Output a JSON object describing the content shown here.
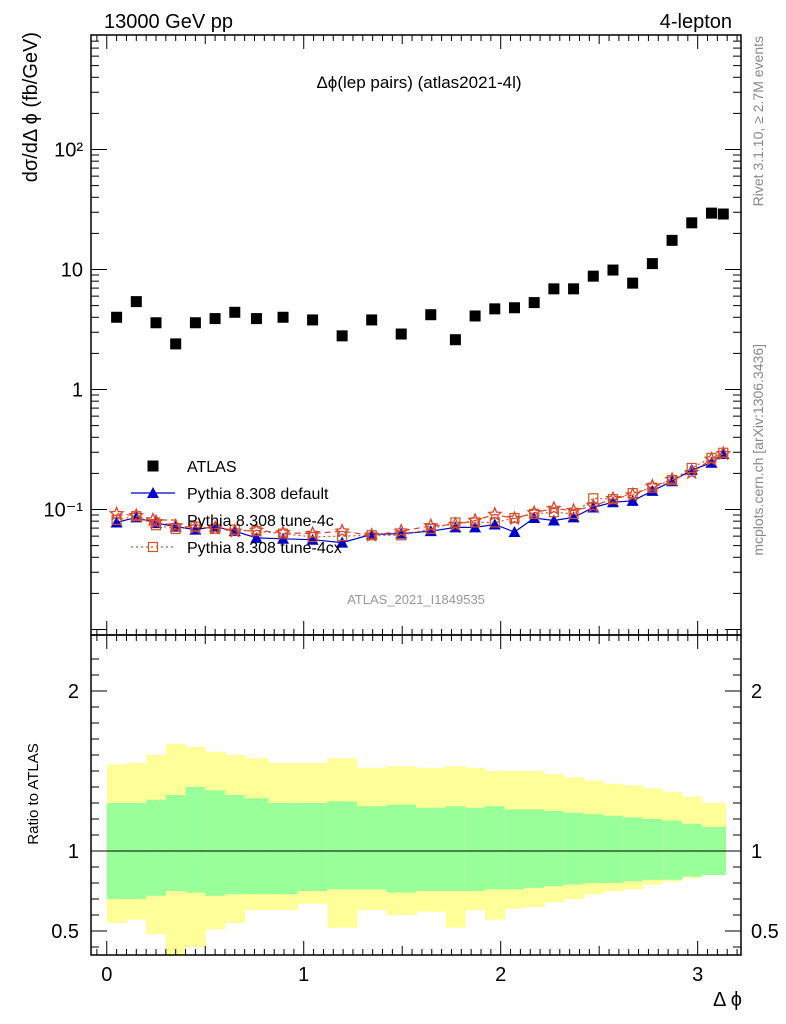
{
  "header": {
    "left": "13000 GeV pp",
    "right": "4-lepton"
  },
  "side_labels": {
    "rivet": "Rivet 3.1.10, ≥ 2.7M events",
    "mcplots": "mcplots.cern.ch [arXiv:1306.3436]"
  },
  "chart_data": {
    "type": "scatter",
    "title": "Δϕ(lep pairs) (atlas2021-4l)",
    "analysis_id": "ATLAS_2021_I1849535",
    "xlabel": "Δ ϕ",
    "ylabel": "dσ/dΔ ϕ (fb/GeV)",
    "ratio_ylabel": "Ratio to ATLAS",
    "xlim": [
      -0.08,
      3.22
    ],
    "ylim": [
      0.009,
      900
    ],
    "yscale": "log",
    "ratio_ylim": [
      0.35,
      2.35
    ],
    "x_ticks": [
      "0",
      "1",
      "2",
      "3"
    ],
    "y_ticks": [
      "10⁻¹",
      "1",
      "10",
      "10²"
    ],
    "ratio_ticks": [
      "0.5",
      "1",
      "2"
    ],
    "legend_position": "middle-left",
    "bin_edges": [
      0,
      0.1,
      0.2,
      0.3,
      0.4,
      0.5,
      0.6,
      0.7,
      0.82,
      0.97,
      1.12,
      1.27,
      1.42,
      1.57,
      1.72,
      1.82,
      1.92,
      2.02,
      2.12,
      2.22,
      2.32,
      2.42,
      2.52,
      2.62,
      2.72,
      2.82,
      2.92,
      3.02,
      3.1416
    ],
    "x": [
      0.05,
      0.15,
      0.25,
      0.35,
      0.45,
      0.55,
      0.65,
      0.76,
      0.895,
      1.045,
      1.195,
      1.345,
      1.495,
      1.645,
      1.77,
      1.87,
      1.97,
      2.07,
      2.17,
      2.27,
      2.37,
      2.47,
      2.57,
      2.67,
      2.77,
      2.87,
      2.97,
      3.07,
      3.13
    ],
    "series": [
      {
        "name": "ATLAS",
        "color": "#000000",
        "marker": "square",
        "values": [
          4.0,
          5.4,
          3.6,
          2.4,
          3.6,
          3.9,
          4.4,
          3.9,
          4.0,
          3.8,
          2.8,
          3.8,
          2.9,
          4.2,
          2.6,
          4.1,
          4.7,
          4.8,
          5.3,
          6.9,
          6.9,
          8.8,
          9.9,
          7.7,
          11.2,
          17.5,
          24.5,
          29.5,
          29.0
        ]
      },
      {
        "name": "Pythia 8.308 default",
        "color": "#0000cc",
        "marker": "triangle",
        "line": "solid",
        "values": [
          0.078,
          0.086,
          0.077,
          0.072,
          0.068,
          0.072,
          0.066,
          0.058,
          0.057,
          0.056,
          0.053,
          0.062,
          0.063,
          0.066,
          0.071,
          0.071,
          0.075,
          0.065,
          0.085,
          0.081,
          0.086,
          0.104,
          0.115,
          0.118,
          0.143,
          0.172,
          0.214,
          0.245,
          0.29
        ]
      },
      {
        "name": "Pythia 8.308 tune-4c",
        "color": "#dd4433",
        "marker": "star",
        "line": "dashed",
        "values": [
          0.092,
          0.089,
          0.079,
          0.073,
          0.071,
          0.07,
          0.066,
          0.067,
          0.064,
          0.063,
          0.066,
          0.061,
          0.066,
          0.073,
          0.075,
          0.081,
          0.091,
          0.084,
          0.094,
          0.102,
          0.098,
          0.107,
          0.123,
          0.132,
          0.156,
          0.178,
          0.203,
          0.262,
          0.292
        ]
      },
      {
        "name": "Pythia 8.308 tune-4cx",
        "color": "#cc5522",
        "marker": "open-square",
        "line": "dotted",
        "values": [
          0.082,
          0.088,
          0.074,
          0.069,
          0.072,
          0.069,
          0.068,
          0.066,
          0.063,
          0.059,
          0.06,
          0.061,
          0.061,
          0.069,
          0.078,
          0.078,
          0.078,
          0.085,
          0.092,
          0.095,
          0.092,
          0.124,
          0.122,
          0.137,
          0.152,
          0.176,
          0.222,
          0.27,
          0.297
        ]
      }
    ],
    "ratio": {
      "reference": 1.0,
      "band_inner_up": [
        1.3,
        1.3,
        1.32,
        1.35,
        1.4,
        1.38,
        1.35,
        1.33,
        1.3,
        1.3,
        1.31,
        1.28,
        1.29,
        1.27,
        1.28,
        1.27,
        1.28,
        1.26,
        1.26,
        1.25,
        1.24,
        1.23,
        1.22,
        1.21,
        1.2,
        1.19,
        1.17,
        1.15,
        1.18
      ],
      "band_inner_down": [
        0.7,
        0.7,
        0.72,
        0.75,
        0.74,
        0.72,
        0.73,
        0.73,
        0.73,
        0.75,
        0.76,
        0.76,
        0.74,
        0.75,
        0.75,
        0.75,
        0.76,
        0.76,
        0.77,
        0.78,
        0.79,
        0.8,
        0.8,
        0.81,
        0.82,
        0.82,
        0.84,
        0.85,
        0.85
      ],
      "band_outer_up": [
        1.54,
        1.55,
        1.6,
        1.67,
        1.65,
        1.62,
        1.6,
        1.58,
        1.55,
        1.55,
        1.58,
        1.52,
        1.53,
        1.52,
        1.53,
        1.52,
        1.5,
        1.5,
        1.5,
        1.48,
        1.46,
        1.44,
        1.42,
        1.41,
        1.39,
        1.37,
        1.34,
        1.3,
        1.33
      ],
      "band_outer_down": [
        0.55,
        0.57,
        0.48,
        0.35,
        0.4,
        0.51,
        0.55,
        0.63,
        0.63,
        0.67,
        0.52,
        0.63,
        0.6,
        0.62,
        0.52,
        0.63,
        0.57,
        0.64,
        0.65,
        0.68,
        0.7,
        0.73,
        0.75,
        0.76,
        0.79,
        0.81,
        0.83,
        0.85,
        0.78
      ]
    }
  }
}
